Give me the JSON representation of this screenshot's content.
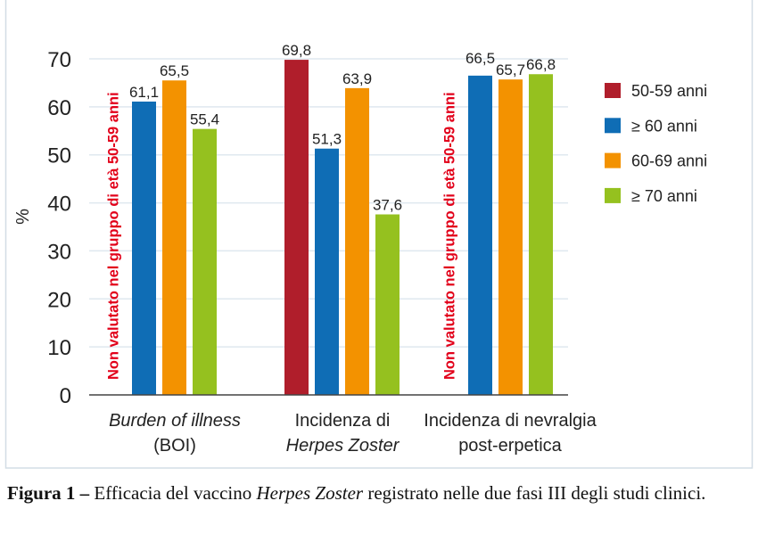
{
  "chart_data": {
    "type": "bar",
    "ylabel": "%",
    "ylim": [
      0,
      70
    ],
    "yticks": [
      0,
      10,
      20,
      30,
      40,
      50,
      60,
      70
    ],
    "grid": true,
    "legend_position": "right",
    "categories": [
      {
        "lines": [
          {
            "text": "Burden of illness",
            "italic": true
          },
          {
            "text": "(BOI)",
            "italic": false
          }
        ]
      },
      {
        "lines": [
          {
            "text": "Incidenza di",
            "italic": false
          },
          {
            "text": "Herpes Zoster",
            "italic": true
          }
        ]
      },
      {
        "lines": [
          {
            "text": "Incidenza di nevralgia",
            "italic": false
          },
          {
            "text": "post-erpetica",
            "italic": false
          }
        ]
      }
    ],
    "series": [
      {
        "name": "50-59 anni",
        "color": "#b01e2b",
        "values": [
          null,
          69.8,
          null
        ],
        "labels": [
          null,
          "69,8",
          null
        ]
      },
      {
        "name": "≥ 60 anni",
        "color": "#0f6db5",
        "values": [
          61.1,
          51.3,
          66.5
        ],
        "labels": [
          "61,1",
          "51,3",
          "66,5"
        ]
      },
      {
        "name": "60-69 anni",
        "color": "#f39200",
        "values": [
          65.5,
          63.9,
          65.7
        ],
        "labels": [
          "65,5",
          "63,9",
          "65,7"
        ]
      },
      {
        "name": "≥ 70 anni",
        "color": "#95c11f",
        "values": [
          55.4,
          37.6,
          66.8
        ],
        "labels": [
          "55,4",
          "37,6",
          "66,8"
        ]
      }
    ],
    "annotations": [
      {
        "text": "Non valutato nel gruppo di età 50-59 anni",
        "category": 0,
        "color": "#e2001a"
      },
      {
        "text": "Non valutato nel gruppo di età 50-59 anni",
        "category": 2,
        "color": "#e2001a"
      }
    ]
  },
  "caption": {
    "label": "Figura 1 –",
    "text_before": " Efficacia del vaccino ",
    "italic": "Herpes Zoster",
    "text_after": " registrato nelle due fasi III degli studi clinici."
  }
}
